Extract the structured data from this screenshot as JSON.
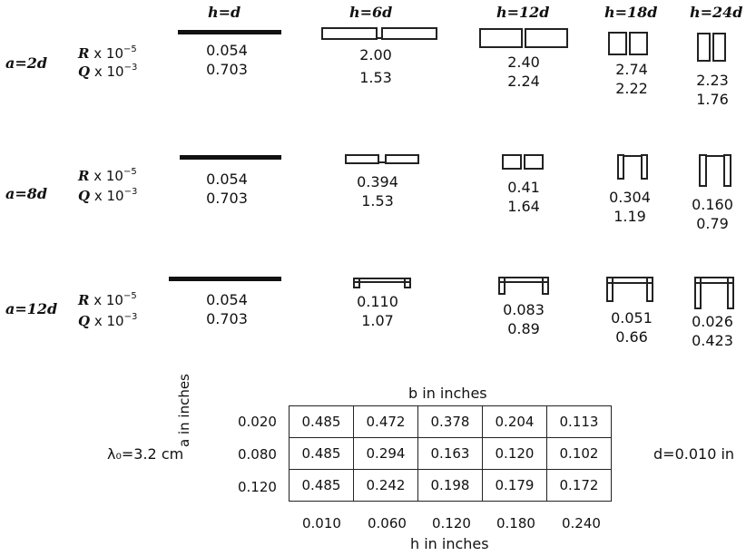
{
  "column_headers": [
    "h=d",
    "h=6d",
    "h=12d",
    "h=18d",
    "h=24d"
  ],
  "row_labels": [
    "a=2d",
    "a=8d",
    "a=12d"
  ],
  "r_label": "R x 10",
  "r_exp": "−5",
  "q_label": "Q x 10",
  "q_exp": "−3",
  "rows": [
    {
      "R": [
        "0.054",
        "2.00",
        "2.40",
        "2.74",
        "2.23"
      ],
      "Q": [
        "0.703",
        "1.53",
        "2.24",
        "2.22",
        "1.76"
      ]
    },
    {
      "R": [
        "0.054",
        "0.394",
        "0.41",
        "0.304",
        "0.160"
      ],
      "Q": [
        "0.703",
        "1.53",
        "1.64",
        "1.19",
        "0.79"
      ]
    },
    {
      "R": [
        "0.054",
        "0.110",
        "0.083",
        "0.051",
        "0.026"
      ],
      "Q": [
        "0.703",
        "1.07",
        "0.89",
        "0.66",
        "0.423"
      ]
    }
  ],
  "table": {
    "b_axis_label": "b in inches",
    "a_axis_label": "a in inches",
    "h_axis_label": "h in inches",
    "row_headers": [
      "0.020",
      "0.080",
      "0.120"
    ],
    "col_headers": [
      "0.010",
      "0.060",
      "0.120",
      "0.180",
      "0.240"
    ],
    "cells": [
      [
        "0.485",
        "0.472",
        "0.378",
        "0.204",
        "0.113"
      ],
      [
        "0.485",
        "0.294",
        "0.163",
        "0.120",
        "0.102"
      ],
      [
        "0.485",
        "0.242",
        "0.198",
        "0.179",
        "0.172"
      ]
    ]
  },
  "lambda_label": "λ₀=3.2 cm",
  "d_label": "d=0.010 in"
}
